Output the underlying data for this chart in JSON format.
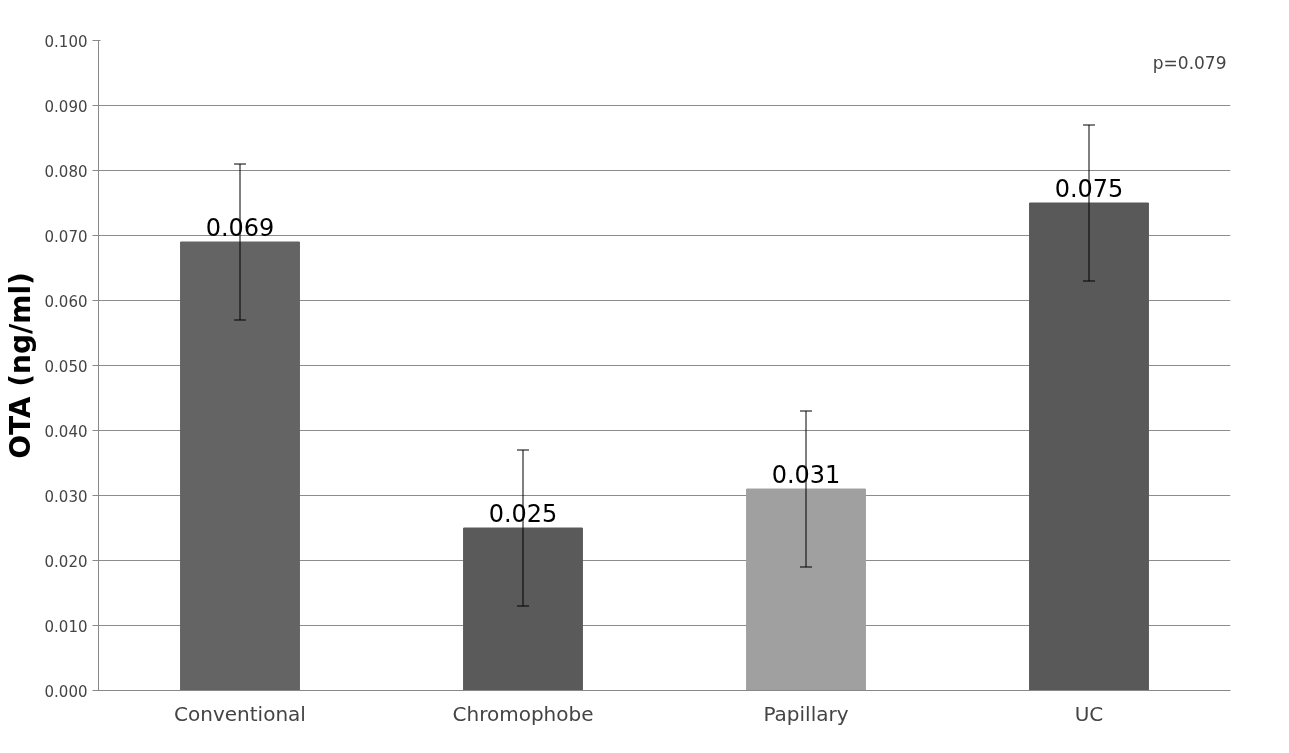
{
  "chart_data": {
    "type": "bar",
    "ylabel": "OTA (ng/ml)",
    "categories": [
      "Conventional",
      "Chromophobe",
      "Papillary",
      "UC"
    ],
    "values": [
      0.069,
      0.025,
      0.031,
      0.075
    ],
    "colors": [
      "#646464",
      "#5a5a5a",
      "#a0a0a0",
      "#595959"
    ],
    "errors": [
      0.012,
      0.012,
      0.012,
      0.012
    ],
    "data_labels": true,
    "ylim": [
      0,
      0.1
    ],
    "yticks": [
      {
        "value": 0,
        "label": "0.000"
      },
      {
        "value": 0.01,
        "label": "0.010"
      },
      {
        "value": 0.02,
        "label": "0.020"
      },
      {
        "value": 0.03,
        "label": "0.030"
      },
      {
        "value": 0.04,
        "label": "0.040"
      },
      {
        "value": 0.05,
        "label": "0.050"
      },
      {
        "value": 0.06,
        "label": "0.060"
      },
      {
        "value": 0.07,
        "label": "0.070"
      },
      {
        "value": 0.08,
        "label": "0.080"
      },
      {
        "value": 0.09,
        "label": "0.090"
      },
      {
        "value": 0.1,
        "label": "0.100"
      }
    ],
    "grid": "y",
    "annotations": [
      "p=0.079"
    ]
  }
}
